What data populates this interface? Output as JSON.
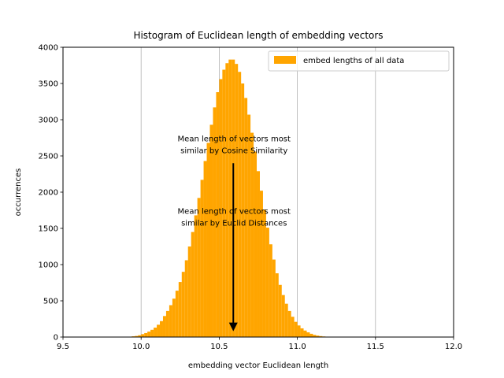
{
  "chart_data": {
    "type": "bar",
    "title": "Histogram of Euclidean length of embedding vectors",
    "xlabel": "embedding vector Euclidean length",
    "ylabel": "occurrences",
    "xlim": [
      9.5,
      12.0
    ],
    "ylim": [
      0,
      4000
    ],
    "x_ticks": [
      "9.5",
      "10.0",
      "10.5",
      "11.0",
      "11.5",
      "12.0"
    ],
    "y_ticks": [
      "0",
      "500",
      "1000",
      "1500",
      "2000",
      "2500",
      "3000",
      "3500",
      "4000"
    ],
    "grid": "vertical",
    "legend_position": "top-right",
    "bar_color": "#ffa500",
    "series": [
      {
        "name": "embed lengths of all data",
        "bin_width": 0.02,
        "bin_starts": [
          9.92,
          9.94,
          9.96,
          9.98,
          10.0,
          10.02,
          10.04,
          10.06,
          10.08,
          10.1,
          10.12,
          10.14,
          10.16,
          10.18,
          10.2,
          10.22,
          10.24,
          10.26,
          10.28,
          10.3,
          10.32,
          10.34,
          10.36,
          10.38,
          10.4,
          10.42,
          10.44,
          10.46,
          10.48,
          10.5,
          10.52,
          10.54,
          10.56,
          10.58,
          10.6,
          10.62,
          10.64,
          10.66,
          10.68,
          10.7,
          10.72,
          10.74,
          10.76,
          10.78,
          10.8,
          10.82,
          10.84,
          10.86,
          10.88,
          10.9,
          10.92,
          10.94,
          10.96,
          10.98,
          11.0,
          11.02,
          11.04,
          11.06,
          11.08,
          11.1,
          11.12,
          11.14,
          11.16,
          11.18,
          11.2,
          11.22,
          11.24,
          11.26,
          11.28,
          11.3,
          11.32,
          11.34,
          11.36,
          11.38,
          11.4,
          11.42,
          11.44,
          11.46,
          11.48
        ],
        "values": [
          5,
          10,
          15,
          25,
          40,
          55,
          75,
          100,
          130,
          170,
          220,
          290,
          360,
          440,
          530,
          640,
          760,
          900,
          1060,
          1250,
          1450,
          1680,
          1920,
          2170,
          2430,
          2680,
          2930,
          3170,
          3380,
          3560,
          3690,
          3780,
          3830,
          3830,
          3770,
          3660,
          3500,
          3300,
          3070,
          2820,
          2560,
          2290,
          2020,
          1760,
          1510,
          1280,
          1070,
          880,
          720,
          580,
          460,
          360,
          280,
          210,
          160,
          120,
          90,
          65,
          45,
          30,
          20,
          13,
          8,
          5,
          3,
          2,
          1,
          1,
          0,
          2,
          1,
          1,
          2,
          2,
          3,
          3,
          2,
          2,
          1
        ]
      }
    ],
    "annotations": [
      {
        "text_line1": "Mean length of vectors most",
        "text_line2": "similar by Cosine Similarity",
        "x": 10.59,
        "y": 2560
      },
      {
        "text_line1": "Mean length of vectors most",
        "text_line2": "similar by Euclid Distances",
        "x": 10.59,
        "y": 1560
      }
    ],
    "arrow": {
      "x": 10.59,
      "y_from": 2400,
      "y_to": 80
    }
  }
}
